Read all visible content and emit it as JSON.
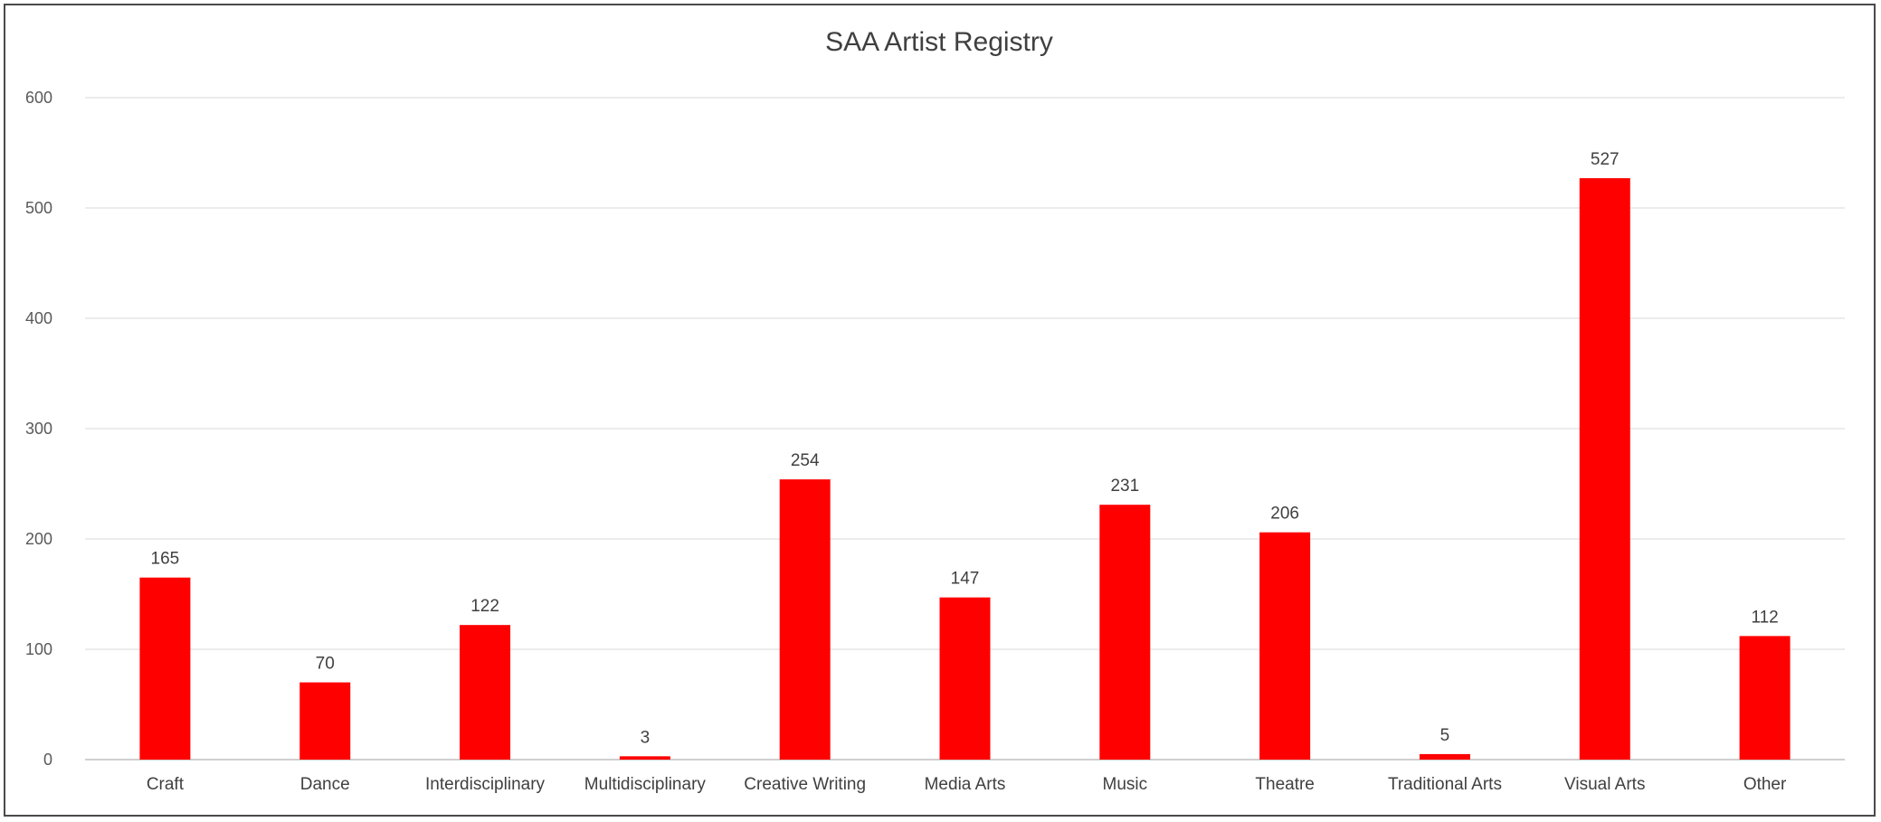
{
  "chart_data": {
    "type": "bar",
    "title": "SAA Artist Registry",
    "xlabel": "",
    "ylabel": "",
    "categories": [
      "Craft",
      "Dance",
      "Interdisciplinary",
      "Multidisciplinary",
      "Creative Writing",
      "Media Arts",
      "Music",
      "Theatre",
      "Traditional Arts",
      "Visual Arts",
      "Other"
    ],
    "values": [
      165,
      70,
      122,
      3,
      254,
      147,
      231,
      206,
      5,
      527,
      112
    ],
    "ylim": [
      0,
      600
    ],
    "yticks": [
      0,
      100,
      200,
      300,
      400,
      500,
      600
    ],
    "grid": true,
    "legend": "none",
    "bar_color": "#ff0000",
    "data_labels": true
  }
}
